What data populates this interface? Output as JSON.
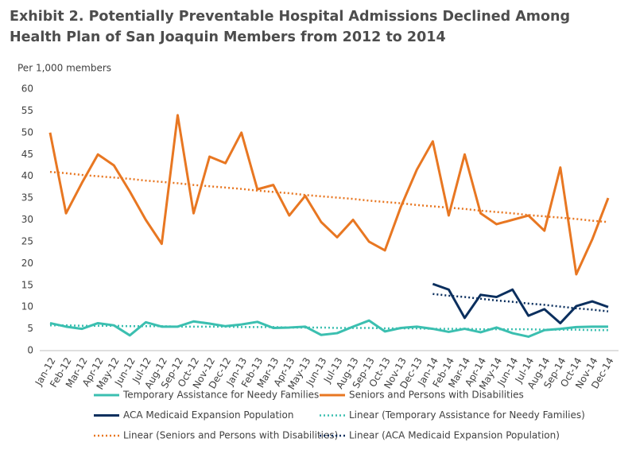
{
  "chart_data": {
    "type": "line",
    "title": "Exhibit 2. Potentially Preventable Hospital Admissions Declined Among Health Plan of San Joaquin Members from 2012 to 2014",
    "y_label": "Per 1,000 members",
    "categories": [
      "Jan-12",
      "Feb-12",
      "Mar-12",
      "Apr-12",
      "May-12",
      "Jun-12",
      "Jul-12",
      "Aug-12",
      "Sep-12",
      "Oct-12",
      "Nov-12",
      "Dec-12",
      "Jan-13",
      "Feb-13",
      "Mar-13",
      "Apr-13",
      "May-13",
      "Jun-13",
      "Jul-13",
      "Aug-13",
      "Sep-13",
      "Oct-13",
      "Nov-13",
      "Dec-13",
      "Jan-14",
      "Feb-14",
      "Mar-14",
      "Apr-14",
      "May-14",
      "Jun-14",
      "Jul-14",
      "Aug-14",
      "Sep-14",
      "Oct-14",
      "Nov-14",
      "Dec-14"
    ],
    "series": [
      {
        "name": "Temporary Assistance for Needy Families",
        "color": "#3bbfb0",
        "dash": false,
        "values": [
          6.3,
          5.5,
          5,
          6.3,
          5.8,
          3.5,
          6.5,
          5.5,
          5.5,
          6.7,
          6.2,
          5.6,
          6,
          6.6,
          5.2,
          5.3,
          5.5,
          3.6,
          4,
          5.5,
          6.9,
          4.4,
          5.2,
          5.5,
          5,
          4.3,
          5,
          4.2,
          5.3,
          4,
          3.2,
          4.7,
          5,
          5.4,
          5.5,
          5.5
        ]
      },
      {
        "name": "Seniors and Persons with Disabilities",
        "color": "#e87722",
        "dash": false,
        "values": [
          50,
          31.5,
          38.5,
          45,
          42.5,
          36.5,
          30,
          24.5,
          54,
          31.5,
          44.5,
          43,
          50,
          37,
          38,
          31,
          35.5,
          29.5,
          26,
          30,
          25,
          23,
          33,
          41.5,
          48,
          31,
          45,
          31.5,
          29,
          30,
          31,
          27.5,
          42,
          17.5,
          25.5,
          35
        ]
      },
      {
        "name": "ACA Medicaid Expansion Population",
        "color": "#0b2f5e",
        "dash": false,
        "values": [
          null,
          null,
          null,
          null,
          null,
          null,
          null,
          null,
          null,
          null,
          null,
          null,
          null,
          null,
          null,
          null,
          null,
          null,
          null,
          null,
          null,
          null,
          null,
          null,
          15.3,
          14,
          7.5,
          12.8,
          12.3,
          14,
          8,
          9.5,
          6.3,
          10.2,
          11.3,
          10
        ]
      },
      {
        "name": "Linear (Temporary Assistance for Needy Families)",
        "color": "#3bbfb0",
        "dash": true,
        "values": [
          5.8,
          5.8,
          5.7,
          5.7,
          5.7,
          5.6,
          5.6,
          5.6,
          5.5,
          5.5,
          5.5,
          5.5,
          5.4,
          5.4,
          5.4,
          5.3,
          5.3,
          5.3,
          5.2,
          5.2,
          5.2,
          5.1,
          5.1,
          5.1,
          5,
          5,
          5,
          4.9,
          4.9,
          4.9,
          4.9,
          4.8,
          4.8,
          4.8,
          4.7,
          4.7
        ]
      },
      {
        "name": "Linear (Seniors and Persons with Disabilities)",
        "color": "#e87722",
        "dash": true,
        "values": [
          41,
          40.7,
          40.3,
          40,
          39.7,
          39.4,
          39,
          38.7,
          38.4,
          38,
          37.7,
          37.4,
          37.1,
          36.7,
          36.4,
          36.1,
          35.7,
          35.4,
          35.1,
          34.8,
          34.4,
          34.1,
          33.8,
          33.4,
          33.1,
          32.8,
          32.5,
          32.1,
          31.8,
          31.5,
          31.1,
          30.8,
          30.5,
          30.2,
          29.8,
          29.5
        ]
      },
      {
        "name": "Linear (ACA Medicaid Expansion Population)",
        "color": "#0b2f5e",
        "dash": true,
        "values": [
          null,
          null,
          null,
          null,
          null,
          null,
          null,
          null,
          null,
          null,
          null,
          null,
          null,
          null,
          null,
          null,
          null,
          null,
          null,
          null,
          null,
          null,
          null,
          null,
          13,
          12.6,
          12.3,
          11.9,
          11.5,
          11.2,
          10.8,
          10.5,
          10.1,
          9.7,
          9.4,
          9
        ]
      }
    ],
    "ylim": [
      0,
      60
    ],
    "yticks": [
      0,
      5,
      10,
      15,
      20,
      25,
      30,
      35,
      40,
      45,
      50,
      55,
      60
    ],
    "grid": false,
    "legend": "bottom"
  }
}
